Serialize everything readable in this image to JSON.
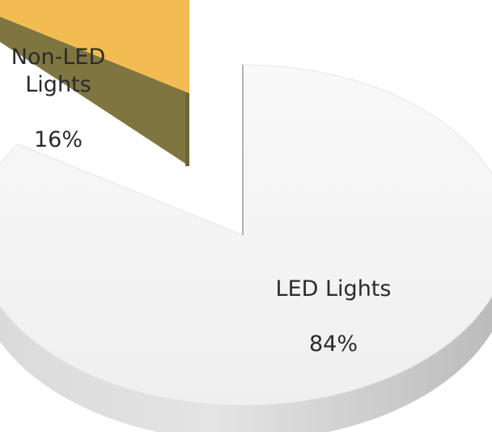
{
  "chart_data": {
    "type": "pie",
    "title": "",
    "legend": "none",
    "slices": [
      {
        "name": "LED Lights",
        "value": 84,
        "label": "84%",
        "color": "#f4f4f4"
      },
      {
        "name": "Non-LED Lights",
        "value": 16,
        "label": "16%",
        "color": "#f2bc52"
      }
    ]
  }
}
